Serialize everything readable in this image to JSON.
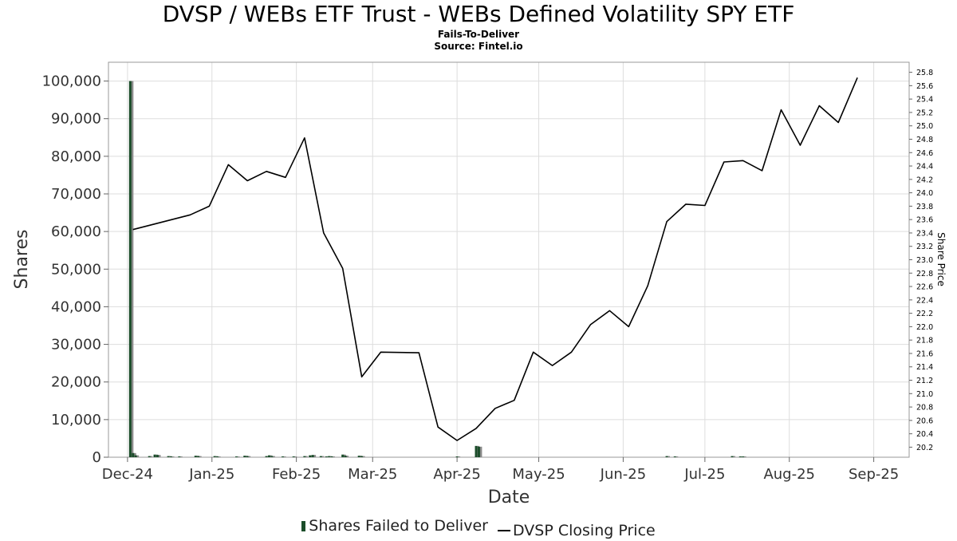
{
  "title": "DVSP / WEBs ETF Trust - WEBs Defined Volatility SPY ETF",
  "subtitle": "Fails-To-Deliver",
  "source": "Source: Fintel.io",
  "colors": {
    "bars": "#1b4d2a",
    "bars_shadow": "#8a8a8a",
    "price_line": "#000000",
    "grid": "#dddddd",
    "axis_text": "#333333"
  },
  "legend": {
    "bars_label": "Shares Failed to Deliver",
    "line_label": "DVSP Closing Price"
  },
  "chart_data": {
    "type": "bar+line",
    "title": "DVSP / WEBs ETF Trust - WEBs Defined Volatility SPY ETF",
    "xlabel": "Date",
    "ylabel": "Shares",
    "y2label": "Share Price",
    "xlim": [
      "2024-11-24",
      "2025-09-14"
    ],
    "ylim": [
      0,
      105000
    ],
    "y2lim": [
      20.05,
      25.95
    ],
    "x_ticks": [
      {
        "date": "2024-12-01",
        "label": "Dec-24"
      },
      {
        "date": "2025-01-01",
        "label": "Jan-25"
      },
      {
        "date": "2025-02-01",
        "label": "Feb-25"
      },
      {
        "date": "2025-03-01",
        "label": "Mar-25"
      },
      {
        "date": "2025-04-01",
        "label": "Apr-25"
      },
      {
        "date": "2025-05-01",
        "label": "May-25"
      },
      {
        "date": "2025-06-01",
        "label": "Jun-25"
      },
      {
        "date": "2025-07-01",
        "label": "Jul-25"
      },
      {
        "date": "2025-08-01",
        "label": "Aug-25"
      },
      {
        "date": "2025-09-01",
        "label": "Sep-25"
      }
    ],
    "y_ticks": [
      {
        "value": 0,
        "label": "0"
      },
      {
        "value": 10000,
        "label": "10,000"
      },
      {
        "value": 20000,
        "label": "20,000"
      },
      {
        "value": 30000,
        "label": "30,000"
      },
      {
        "value": 40000,
        "label": "40,000"
      },
      {
        "value": 50000,
        "label": "50,000"
      },
      {
        "value": 60000,
        "label": "60,000"
      },
      {
        "value": 70000,
        "label": "70,000"
      },
      {
        "value": 80000,
        "label": "80,000"
      },
      {
        "value": 90000,
        "label": "90,000"
      },
      {
        "value": 100000,
        "label": "100,000"
      }
    ],
    "y2_ticks": [
      {
        "value": 20.2,
        "label": "20.2"
      },
      {
        "value": 20.4,
        "label": "20.4"
      },
      {
        "value": 20.6,
        "label": "20.6"
      },
      {
        "value": 20.8,
        "label": "20.8"
      },
      {
        "value": 21.0,
        "label": "21.0"
      },
      {
        "value": 21.2,
        "label": "21.2"
      },
      {
        "value": 21.4,
        "label": "21.4"
      },
      {
        "value": 21.6,
        "label": "21.6"
      },
      {
        "value": 21.8,
        "label": "21.8"
      },
      {
        "value": 22.0,
        "label": "22.0"
      },
      {
        "value": 22.2,
        "label": "22.2"
      },
      {
        "value": 22.4,
        "label": "22.4"
      },
      {
        "value": 22.6,
        "label": "22.6"
      },
      {
        "value": 22.8,
        "label": "22.8"
      },
      {
        "value": 23.0,
        "label": "23.0"
      },
      {
        "value": 23.2,
        "label": "23.2"
      },
      {
        "value": 23.4,
        "label": "23.4"
      },
      {
        "value": 23.6,
        "label": "23.6"
      },
      {
        "value": 23.8,
        "label": "23.8"
      },
      {
        "value": 24.0,
        "label": "24.0"
      },
      {
        "value": 24.2,
        "label": "24.2"
      },
      {
        "value": 24.4,
        "label": "24.4"
      },
      {
        "value": 24.6,
        "label": "24.6"
      },
      {
        "value": 24.8,
        "label": "24.8"
      },
      {
        "value": 25.0,
        "label": "25.0"
      },
      {
        "value": 25.2,
        "label": "25.2"
      },
      {
        "value": 25.4,
        "label": "25.4"
      },
      {
        "value": 25.6,
        "label": "25.6"
      },
      {
        "value": 25.8,
        "label": "25.8"
      }
    ],
    "grid": true,
    "legend_position": "bottom",
    "series": [
      {
        "name": "Shares Failed to Deliver",
        "type": "bar",
        "points": [
          {
            "x": "2024-12-02",
            "y": 100000
          },
          {
            "x": "2024-12-03",
            "y": 1100
          },
          {
            "x": "2024-12-04",
            "y": 500
          },
          {
            "x": "2024-12-09",
            "y": 300
          },
          {
            "x": "2024-12-11",
            "y": 700
          },
          {
            "x": "2024-12-12",
            "y": 600
          },
          {
            "x": "2024-12-16",
            "y": 300
          },
          {
            "x": "2024-12-17",
            "y": 200
          },
          {
            "x": "2024-12-20",
            "y": 200
          },
          {
            "x": "2024-12-26",
            "y": 400
          },
          {
            "x": "2024-12-27",
            "y": 300
          },
          {
            "x": "2025-01-02",
            "y": 300
          },
          {
            "x": "2025-01-03",
            "y": 200
          },
          {
            "x": "2025-01-10",
            "y": 200
          },
          {
            "x": "2025-01-13",
            "y": 400
          },
          {
            "x": "2025-01-14",
            "y": 300
          },
          {
            "x": "2025-01-21",
            "y": 300
          },
          {
            "x": "2025-01-22",
            "y": 500
          },
          {
            "x": "2025-01-23",
            "y": 300
          },
          {
            "x": "2025-01-27",
            "y": 200
          },
          {
            "x": "2025-01-31",
            "y": 200
          },
          {
            "x": "2025-02-04",
            "y": 300
          },
          {
            "x": "2025-02-06",
            "y": 500
          },
          {
            "x": "2025-02-07",
            "y": 600
          },
          {
            "x": "2025-02-10",
            "y": 300
          },
          {
            "x": "2025-02-12",
            "y": 200
          },
          {
            "x": "2025-02-13",
            "y": 300
          },
          {
            "x": "2025-02-14",
            "y": 200
          },
          {
            "x": "2025-02-18",
            "y": 700
          },
          {
            "x": "2025-02-19",
            "y": 400
          },
          {
            "x": "2025-02-24",
            "y": 400
          },
          {
            "x": "2025-02-25",
            "y": 300
          },
          {
            "x": "2025-04-01",
            "y": 200
          },
          {
            "x": "2025-04-08",
            "y": 3000
          },
          {
            "x": "2025-04-09",
            "y": 2800
          },
          {
            "x": "2025-06-17",
            "y": 300
          },
          {
            "x": "2025-06-20",
            "y": 150
          },
          {
            "x": "2025-07-11",
            "y": 300
          },
          {
            "x": "2025-07-14",
            "y": 200
          },
          {
            "x": "2025-07-15",
            "y": 150
          }
        ]
      },
      {
        "name": "DVSP Closing Price",
        "type": "line",
        "points": [
          {
            "x": "2024-12-03",
            "y": 23.45
          },
          {
            "x": "2024-12-24",
            "y": 23.67
          },
          {
            "x": "2024-12-31",
            "y": 23.8
          },
          {
            "x": "2025-01-07",
            "y": 24.42
          },
          {
            "x": "2025-01-14",
            "y": 24.18
          },
          {
            "x": "2025-01-21",
            "y": 24.32
          },
          {
            "x": "2025-01-28",
            "y": 24.23
          },
          {
            "x": "2025-02-04",
            "y": 24.82
          },
          {
            "x": "2025-02-11",
            "y": 23.4
          },
          {
            "x": "2025-02-18",
            "y": 22.87
          },
          {
            "x": "2025-02-25",
            "y": 21.25
          },
          {
            "x": "2025-03-04",
            "y": 21.62
          },
          {
            "x": "2025-03-18",
            "y": 21.61
          },
          {
            "x": "2025-03-25",
            "y": 20.5
          },
          {
            "x": "2025-04-01",
            "y": 20.3
          },
          {
            "x": "2025-04-08",
            "y": 20.48
          },
          {
            "x": "2025-04-15",
            "y": 20.78
          },
          {
            "x": "2025-04-22",
            "y": 20.9
          },
          {
            "x": "2025-04-29",
            "y": 21.62
          },
          {
            "x": "2025-05-06",
            "y": 21.42
          },
          {
            "x": "2025-05-13",
            "y": 21.62
          },
          {
            "x": "2025-05-20",
            "y": 22.03
          },
          {
            "x": "2025-05-27",
            "y": 22.24
          },
          {
            "x": "2025-06-03",
            "y": 22.0
          },
          {
            "x": "2025-06-10",
            "y": 22.61
          },
          {
            "x": "2025-06-17",
            "y": 23.57
          },
          {
            "x": "2025-06-24",
            "y": 23.83
          },
          {
            "x": "2025-07-01",
            "y": 23.81
          },
          {
            "x": "2025-07-08",
            "y": 24.46
          },
          {
            "x": "2025-07-15",
            "y": 24.48
          },
          {
            "x": "2025-07-22",
            "y": 24.33
          },
          {
            "x": "2025-07-29",
            "y": 25.24
          },
          {
            "x": "2025-08-05",
            "y": 24.71
          },
          {
            "x": "2025-08-12",
            "y": 25.3
          },
          {
            "x": "2025-08-19",
            "y": 25.05
          },
          {
            "x": "2025-08-26",
            "y": 25.72
          }
        ]
      }
    ]
  }
}
